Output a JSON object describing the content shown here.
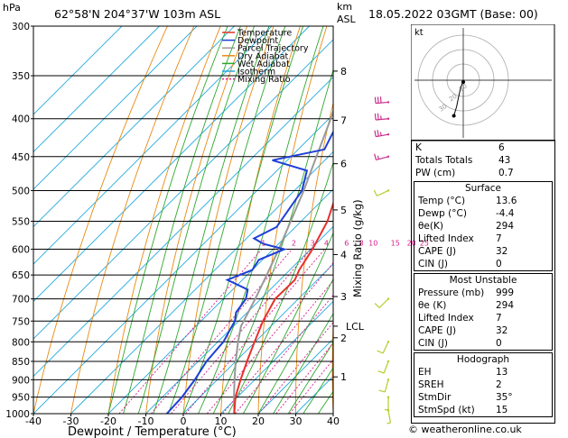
{
  "header": {
    "units": "hPa",
    "location": "62°58'N  204°37'W  103m  ASL",
    "km_label": "km",
    "asl_label": "ASL",
    "datetime": "18.05.2022  03GMT  (Base: 00)"
  },
  "legend": [
    "Temperature",
    "Dewpoint",
    "Parcel Trajectory",
    "Dry Adiabat",
    "Wet Adiabat",
    "Isotherm",
    "Mixing Ratio"
  ],
  "colors": {
    "temperature": "#e8302a",
    "dewpoint": "#1e3fd6",
    "parcel": "#999999",
    "dry_adiabat": "#e88a12",
    "wet_adiabat": "#2fa82f",
    "isotherm": "#22aadd",
    "mixing_ratio": "#d6208a",
    "wind": "#b0cf2a",
    "wind_upper": "#cc2f8f"
  },
  "chart_data": {
    "type": "skew-t log-p",
    "xlabel": "Dewpoint / Temperature (°C)",
    "ylabel": "hPa",
    "ylabel_right": "Mixing Ratio (g/kg)",
    "xlim": [
      -40,
      40
    ],
    "ylim": [
      1000,
      300
    ],
    "pressure_ticks": [
      "300",
      "350",
      "400",
      "450",
      "500",
      "550",
      "600",
      "650",
      "700",
      "750",
      "800",
      "850",
      "900",
      "950",
      "1000"
    ],
    "temp_ticks": [
      "-40",
      "-30",
      "-20",
      "-10",
      "0",
      "10",
      "20",
      "30",
      "40"
    ],
    "km_ticks": [
      {
        "p": 345,
        "label": "8"
      },
      {
        "p": 402,
        "label": "7"
      },
      {
        "p": 460,
        "label": "6"
      },
      {
        "p": 531,
        "label": "5"
      },
      {
        "p": 610,
        "label": "4"
      },
      {
        "p": 695,
        "label": "3"
      },
      {
        "p": 790,
        "label": "2"
      },
      {
        "p": 892,
        "label": "1"
      }
    ],
    "lcl": {
      "p": 762,
      "label": "LCL"
    },
    "mixing_ratio_labels": [
      "1",
      "2",
      "3",
      "4",
      "6",
      "8",
      "10",
      "15",
      "20",
      "25"
    ],
    "temperature": [
      [
        1000,
        13.6
      ],
      [
        950,
        9.5
      ],
      [
        900,
        6.2
      ],
      [
        850,
        3.0
      ],
      [
        800,
        -0.2
      ],
      [
        750,
        -3.5
      ],
      [
        700,
        -6.2
      ],
      [
        660,
        -6.0
      ],
      [
        640,
        -7.5
      ],
      [
        600,
        -9.5
      ],
      [
        550,
        -13
      ],
      [
        500,
        -18.5
      ],
      [
        470,
        -21
      ],
      [
        450,
        -20
      ],
      [
        420,
        -23
      ],
      [
        400,
        -25.5
      ],
      [
        350,
        -31.5
      ],
      [
        320,
        -36
      ],
      [
        300,
        -39
      ]
    ],
    "dewpoint": [
      [
        1000,
        -4.4
      ],
      [
        950,
        -4.8
      ],
      [
        900,
        -6.0
      ],
      [
        850,
        -7.8
      ],
      [
        800,
        -8.5
      ],
      [
        770,
        -10
      ],
      [
        750,
        -11
      ],
      [
        730,
        -13
      ],
      [
        700,
        -14
      ],
      [
        680,
        -16
      ],
      [
        660,
        -24
      ],
      [
        640,
        -20
      ],
      [
        620,
        -21
      ],
      [
        600,
        -17
      ],
      [
        590,
        -24
      ],
      [
        580,
        -28
      ],
      [
        560,
        -25
      ],
      [
        500,
        -28
      ],
      [
        470,
        -32
      ],
      [
        455,
        -44
      ],
      [
        440,
        -33
      ],
      [
        420,
        -35
      ],
      [
        400,
        -37
      ],
      [
        380,
        -35
      ],
      [
        360,
        -36
      ],
      [
        340,
        -36
      ],
      [
        320,
        -40
      ],
      [
        300,
        -41
      ]
    ],
    "parcel": [
      [
        1000,
        13.6
      ],
      [
        950,
        9.1
      ],
      [
        900,
        4.6
      ],
      [
        850,
        0.0
      ],
      [
        800,
        -4.6
      ],
      [
        762,
        -8.0
      ],
      [
        700,
        -11.5
      ],
      [
        650,
        -14.8
      ],
      [
        600,
        -18.5
      ],
      [
        550,
        -22.8
      ],
      [
        500,
        -27.5
      ],
      [
        450,
        -33.2
      ],
      [
        400,
        -39.5
      ],
      [
        350,
        -47
      ],
      [
        300,
        -55
      ]
    ],
    "winds": [
      {
        "p": 990,
        "dir": 170,
        "spd": 5
      },
      {
        "p": 950,
        "dir": 180,
        "spd": 5
      },
      {
        "p": 900,
        "dir": 195,
        "spd": 10
      },
      {
        "p": 850,
        "dir": 200,
        "spd": 10
      },
      {
        "p": 800,
        "dir": 205,
        "spd": 10
      },
      {
        "p": 700,
        "dir": 225,
        "spd": 10
      },
      {
        "p": 500,
        "dir": 245,
        "spd": 10
      },
      {
        "p": 450,
        "dir": 255,
        "spd": 15
      },
      {
        "p": 420,
        "dir": 260,
        "spd": 25
      },
      {
        "p": 400,
        "dir": 265,
        "spd": 25
      },
      {
        "p": 380,
        "dir": 265,
        "spd": 30
      }
    ]
  },
  "hodograph": {
    "label": "kt",
    "ring_labels": [
      "10",
      "20",
      "30"
    ],
    "trace": [
      [
        0,
        0
      ],
      [
        -0.5,
        -1.5
      ],
      [
        -1.5,
        -4.5
      ],
      [
        -2.5,
        -9
      ],
      [
        -3.5,
        -14
      ],
      [
        -5,
        -19
      ]
    ]
  },
  "indices": {
    "rows": [
      {
        "label": "K",
        "value": "6"
      },
      {
        "label": "Totals Totals",
        "value": "43"
      },
      {
        "label": "PW (cm)",
        "value": "0.7"
      }
    ],
    "surface": {
      "title": "Surface",
      "rows": [
        {
          "label": "Temp (°C)",
          "value": "13.6"
        },
        {
          "label": "Dewp (°C)",
          "value": "-4.4"
        },
        {
          "label": "θe(K)",
          "value": "294"
        },
        {
          "label": "Lifted Index",
          "value": "7"
        },
        {
          "label": "CAPE (J)",
          "value": "32"
        },
        {
          "label": "CIN (J)",
          "value": "0"
        }
      ]
    },
    "most_unstable": {
      "title": "Most Unstable",
      "rows": [
        {
          "label": "Pressure (mb)",
          "value": "999"
        },
        {
          "label": "θe (K)",
          "value": "294"
        },
        {
          "label": "Lifted Index",
          "value": "7"
        },
        {
          "label": "CAPE (J)",
          "value": "32"
        },
        {
          "label": "CIN (J)",
          "value": "0"
        }
      ]
    },
    "hodograph": {
      "title": "Hodograph",
      "rows": [
        {
          "label": "EH",
          "value": "13"
        },
        {
          "label": "SREH",
          "value": "2"
        },
        {
          "label": "StmDir",
          "value": "35°"
        },
        {
          "label": "StmSpd (kt)",
          "value": "15"
        }
      ]
    }
  },
  "credit": "© weatheronline.co.uk"
}
